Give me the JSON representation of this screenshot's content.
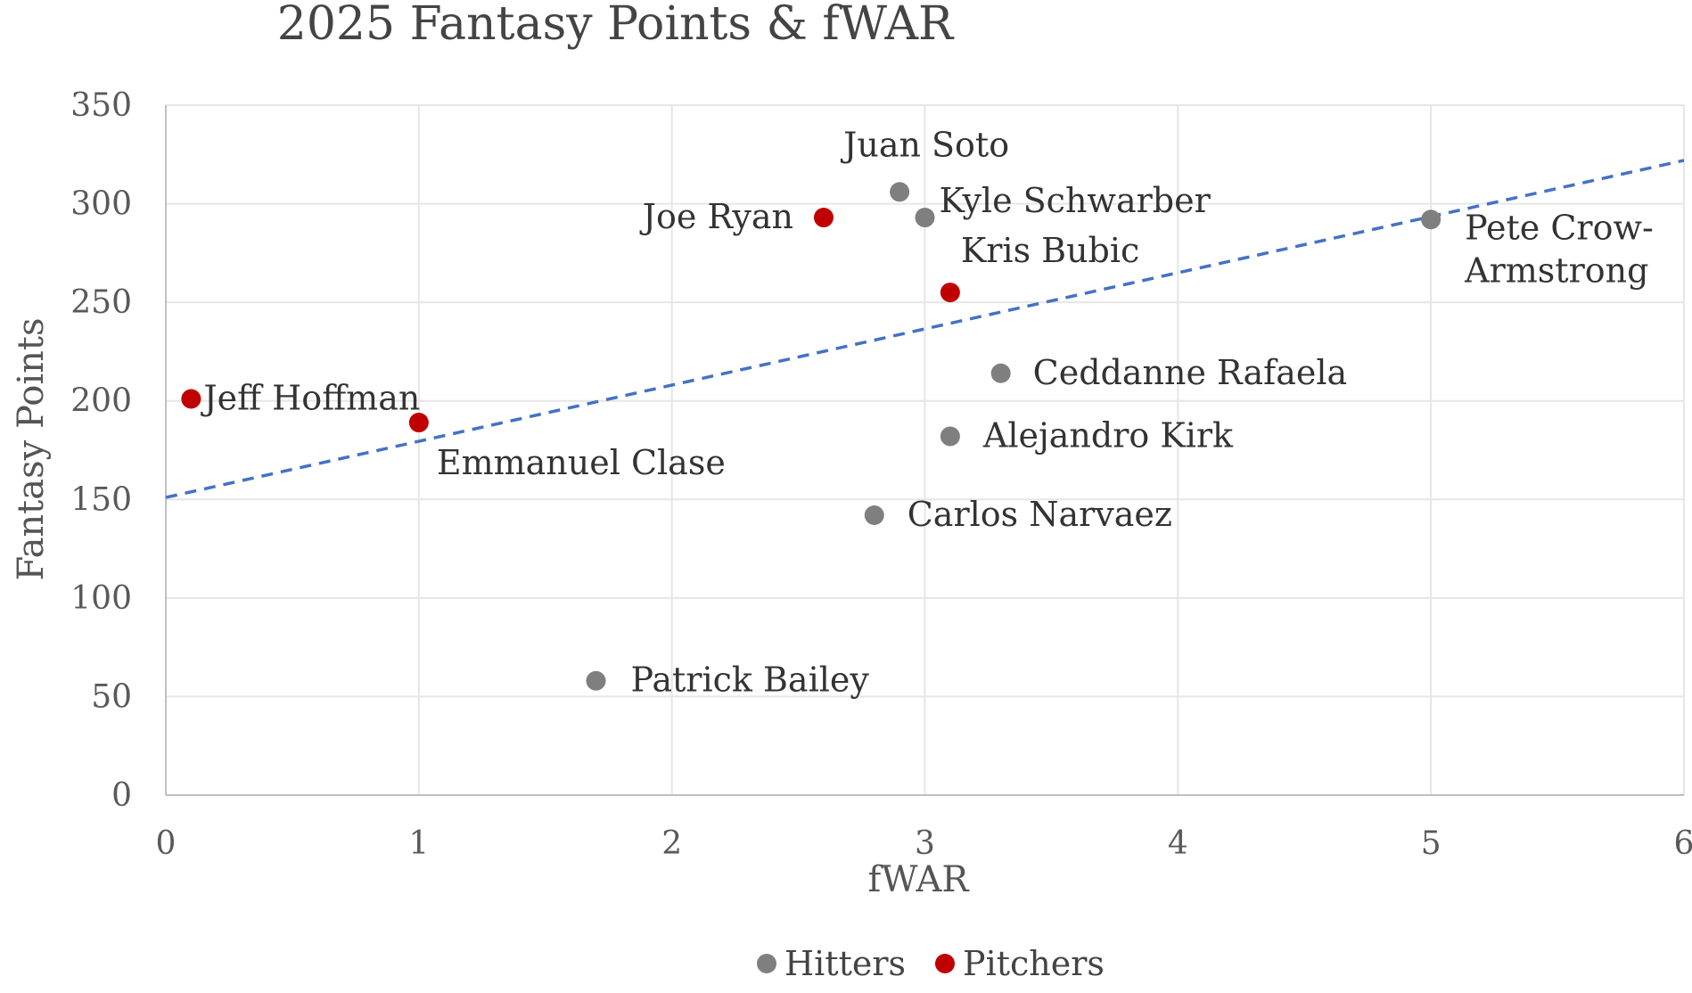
{
  "chart_data": {
    "type": "scatter",
    "title": "2025 Fantasy Points & fWAR",
    "xlabel": "fWAR",
    "ylabel": "Fantasy Points",
    "xlim": [
      0,
      6
    ],
    "ylim": [
      0,
      350
    ],
    "xticks": [
      0,
      1,
      2,
      3,
      4,
      5,
      6
    ],
    "yticks": [
      0,
      50,
      100,
      150,
      200,
      250,
      300,
      350
    ],
    "grid": true,
    "legend_position": "bottom",
    "series": [
      {
        "name": "Hitters",
        "color": "#7f7f7f",
        "points": [
          {
            "label": "Juan Soto",
            "x": 2.9,
            "y": 306
          },
          {
            "label": "Kyle Schwarber",
            "x": 3.0,
            "y": 293
          },
          {
            "label": "Pete Crow-Armstrong",
            "x": 5.0,
            "y": 292
          },
          {
            "label": "Ceddanne Rafaela",
            "x": 3.3,
            "y": 214
          },
          {
            "label": "Alejandro Kirk",
            "x": 3.1,
            "y": 182
          },
          {
            "label": "Carlos Narvaez",
            "x": 2.8,
            "y": 142
          },
          {
            "label": "Patrick Bailey",
            "x": 1.7,
            "y": 58
          }
        ]
      },
      {
        "name": "Pitchers",
        "color": "#c00000",
        "points": [
          {
            "label": "Joe Ryan",
            "x": 2.6,
            "y": 293
          },
          {
            "label": "Kris Bubic",
            "x": 3.1,
            "y": 255
          },
          {
            "label": "Jeff Hoffman",
            "x": 0.1,
            "y": 201
          },
          {
            "label": "Emmanuel Clase",
            "x": 1.0,
            "y": 189
          }
        ]
      }
    ],
    "trendline": {
      "type": "linear",
      "style": "dashed",
      "color": "#4472c4",
      "x": [
        0,
        6
      ],
      "y": [
        151,
        322
      ]
    }
  }
}
